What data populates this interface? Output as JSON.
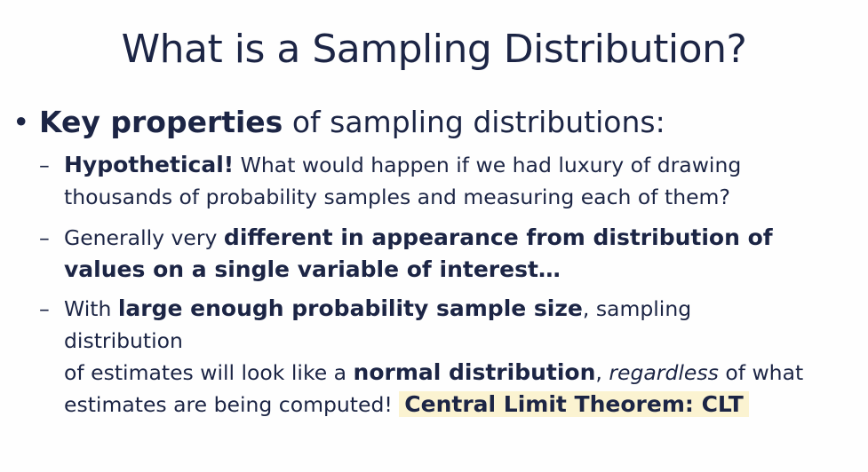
{
  "title": "What is a Sampling Distribution?",
  "bullet": {
    "symbol": "•",
    "bold": "Key properties",
    "rest": " of sampling distributions:"
  },
  "items": [
    {
      "dash": "–",
      "l1_bold": "Hypothetical!",
      "l1_rest": " What would happen if we had luxury of drawing",
      "l2": "thousands of probability samples and measuring each of them?"
    },
    {
      "dash": "–",
      "l1_pre": "Generally very ",
      "l1_bold": "different in appearance from distribution of",
      "l2_bold": "values on a single variable of interest…"
    },
    {
      "dash": "–",
      "l1_pre": "With ",
      "l1_bold": "large enough probability sample size",
      "l1_rest": ", sampling",
      "l2": "distribution",
      "l3_pre": "of estimates will look like a ",
      "l3_bold": "normal distribution",
      "l3_mid": ", ",
      "l3_italic": "regardless",
      "l3_rest": " of what",
      "l4_pre": "estimates are being computed! ",
      "l4_highlight": "Central Limit Theorem: CLT"
    }
  ],
  "colors": {
    "text": "#1c2545",
    "highlight_bg": "#fbf3d1"
  }
}
